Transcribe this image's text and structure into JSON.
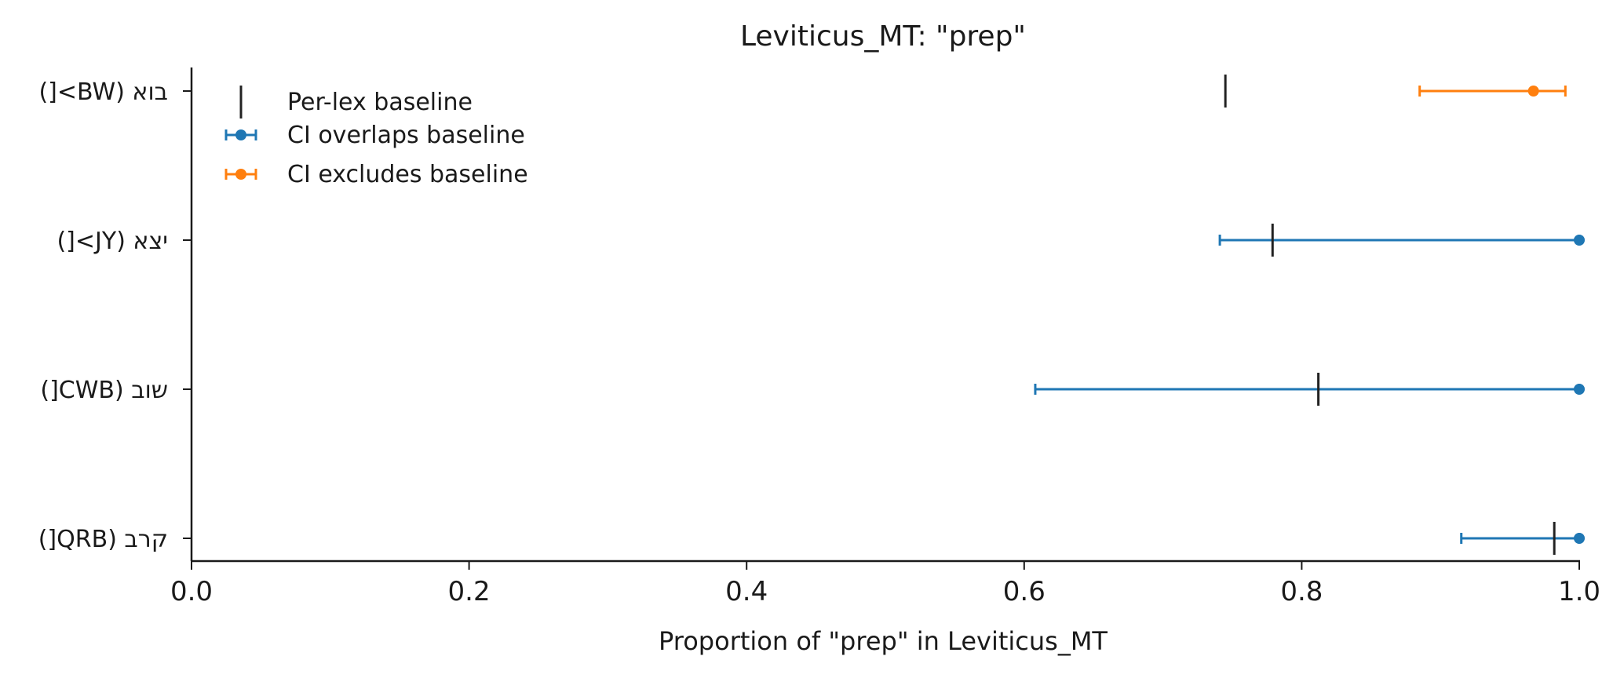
{
  "chart_data": {
    "type": "errorbar",
    "title": "Leviticus_MT: \"prep\"",
    "xlabel": "Proportion of \"prep\" in Leviticus_MT",
    "ylabel": "",
    "xlim": [
      0.0,
      1.0
    ],
    "xticks": [
      "0.0",
      "0.2",
      "0.4",
      "0.6",
      "0.8",
      "1.0"
    ],
    "grid": false,
    "legend_position": "top-left",
    "legend": [
      {
        "key": "baseline",
        "label": "Per-lex baseline",
        "color": "#222222"
      },
      {
        "key": "overlaps",
        "label": "CI overlaps baseline",
        "color": "#1f77b4"
      },
      {
        "key": "excludes",
        "label": "CI excludes baseline",
        "color": "#ff7f0e"
      }
    ],
    "categories": [
      "בוא (BW>[)",
      "יצא (JY>[)",
      "שוב (CWB[)",
      "קרב (QRB[)"
    ],
    "points": [
      {
        "label": "בוא (BW>[)",
        "value": 0.967,
        "ci_low": 0.885,
        "ci_high": 0.99,
        "baseline": 0.745,
        "status": "excludes"
      },
      {
        "label": "יצא (JY>[)",
        "value": 1.0,
        "ci_low": 0.741,
        "ci_high": 1.0,
        "baseline": 0.779,
        "status": "overlaps"
      },
      {
        "label": "שוב (CWB[)",
        "value": 1.0,
        "ci_low": 0.608,
        "ci_high": 1.0,
        "baseline": 0.812,
        "status": "overlaps"
      },
      {
        "label": "קרב (QRB[)",
        "value": 1.0,
        "ci_low": 0.915,
        "ci_high": 1.0,
        "baseline": 0.982,
        "status": "overlaps"
      }
    ]
  }
}
